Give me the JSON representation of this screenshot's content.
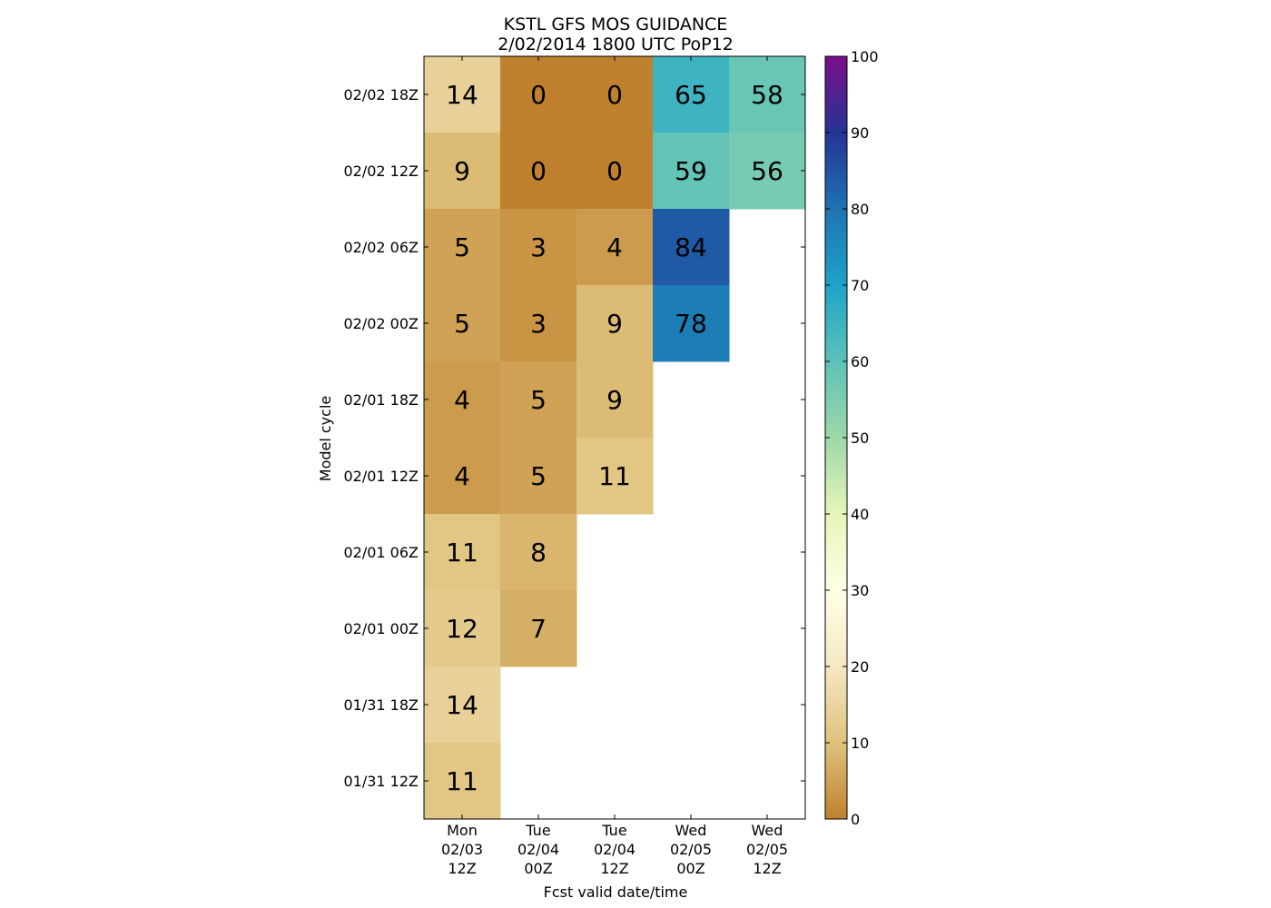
{
  "chart_data": {
    "type": "heatmap",
    "title": "KSTL GFS MOS GUIDANCE",
    "subtitle": "2/02/2014 1800 UTC PoP12",
    "xlabel": "Fcst valid date/time",
    "ylabel": "Model cycle",
    "x_categories": [
      [
        "Mon",
        "02/03",
        "12Z"
      ],
      [
        "Tue",
        "02/04",
        "00Z"
      ],
      [
        "Tue",
        "02/04",
        "12Z"
      ],
      [
        "Wed",
        "02/05",
        "00Z"
      ],
      [
        "Wed",
        "02/05",
        "12Z"
      ]
    ],
    "y_categories": [
      "02/02 18Z",
      "02/02 12Z",
      "02/02 06Z",
      "02/02 00Z",
      "02/01 18Z",
      "02/01 12Z",
      "02/01 06Z",
      "02/01 00Z",
      "01/31 18Z",
      "01/31 12Z"
    ],
    "values": [
      [
        14,
        0,
        0,
        65,
        58
      ],
      [
        9,
        0,
        0,
        59,
        56
      ],
      [
        5,
        3,
        4,
        84,
        null
      ],
      [
        5,
        3,
        9,
        78,
        null
      ],
      [
        4,
        5,
        9,
        null,
        null
      ],
      [
        4,
        5,
        11,
        null,
        null
      ],
      [
        11,
        8,
        null,
        null,
        null
      ],
      [
        12,
        7,
        null,
        null,
        null
      ],
      [
        14,
        null,
        null,
        null,
        null
      ],
      [
        11,
        null,
        null,
        null,
        null
      ]
    ],
    "colorbar": {
      "range": [
        0,
        100
      ],
      "ticks": [
        0,
        10,
        20,
        30,
        40,
        50,
        60,
        70,
        80,
        90,
        100
      ],
      "colormap": [
        [
          0,
          "#bf812d"
        ],
        [
          10,
          "#dfc27d"
        ],
        [
          20,
          "#f6e8c3"
        ],
        [
          30,
          "#ffffe5"
        ],
        [
          40,
          "#e5f5b9"
        ],
        [
          50,
          "#9dd8a8"
        ],
        [
          60,
          "#5cc2b9"
        ],
        [
          70,
          "#1fa3c8"
        ],
        [
          80,
          "#1d73b2"
        ],
        [
          90,
          "#253494"
        ],
        [
          100,
          "#7b0f8a"
        ]
      ]
    }
  }
}
